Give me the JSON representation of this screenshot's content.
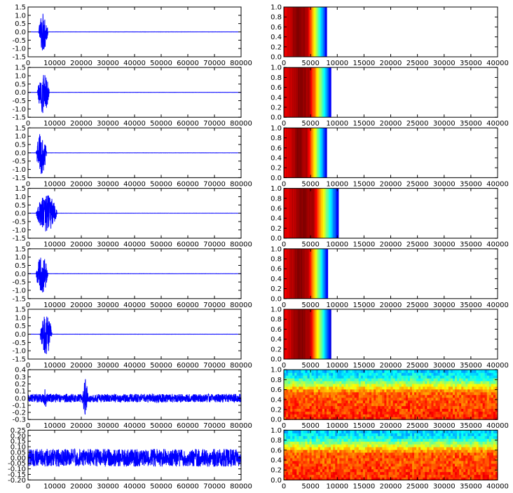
{
  "chart_data": [
    {
      "type": "line",
      "kind": "waveform",
      "row": 0,
      "xlim": [
        0,
        80000
      ],
      "ylim": [
        -1.5,
        1.5
      ],
      "xticks": [
        "0",
        "10000",
        "20000",
        "30000",
        "40000",
        "50000",
        "60000",
        "70000",
        "80000"
      ],
      "yticks": [
        "1.5",
        "1.0",
        "0.5",
        "0.0",
        "-0.5",
        "-1.0",
        "-1.5"
      ],
      "burst": {
        "start": 4000,
        "end": 7500,
        "amplitude": 1.2
      },
      "noise": 0.02,
      "line_color": "#0000ff"
    },
    {
      "type": "heatmap",
      "kind": "spectrogram",
      "row": 0,
      "xlim": [
        0,
        40000
      ],
      "ylim": [
        0,
        1
      ],
      "xticks": [
        "0",
        "5000",
        "10000",
        "15000",
        "20000",
        "25000",
        "30000",
        "35000",
        "40000"
      ],
      "yticks": [
        "1.0",
        "0.8",
        "0.6",
        "0.4",
        "0.2",
        "0.0"
      ],
      "colormap": "jet",
      "extent": 8000,
      "pattern": "gradient"
    },
    {
      "type": "line",
      "kind": "waveform",
      "row": 1,
      "xlim": [
        0,
        80000
      ],
      "ylim": [
        -1.5,
        1.5
      ],
      "xticks": [
        "0",
        "10000",
        "20000",
        "30000",
        "40000",
        "50000",
        "60000",
        "70000",
        "80000"
      ],
      "yticks": [
        "1.5",
        "1.0",
        "0.5",
        "0.0",
        "-0.5",
        "-1.0",
        "-1.5"
      ],
      "burst": {
        "start": 3500,
        "end": 8000,
        "amplitude": 1.3
      },
      "noise": 0.02,
      "line_color": "#0000ff"
    },
    {
      "type": "heatmap",
      "kind": "spectrogram",
      "row": 1,
      "xlim": [
        0,
        40000
      ],
      "ylim": [
        0,
        1
      ],
      "xticks": [
        "0",
        "5000",
        "10000",
        "15000",
        "20000",
        "25000",
        "30000",
        "35000",
        "40000"
      ],
      "yticks": [
        "1.0",
        "0.8",
        "0.6",
        "0.4",
        "0.2",
        "0.0"
      ],
      "colormap": "jet",
      "extent": 8800,
      "pattern": "gradient"
    },
    {
      "type": "line",
      "kind": "waveform",
      "row": 2,
      "xlim": [
        0,
        80000
      ],
      "ylim": [
        -1.5,
        1.5
      ],
      "xticks": [
        "0",
        "10000",
        "20000",
        "30000",
        "40000",
        "50000",
        "60000",
        "70000",
        "80000"
      ],
      "yticks": [
        "1.5",
        "1.0",
        "0.5",
        "0.0",
        "-0.5",
        "-1.0",
        "-1.5"
      ],
      "burst": {
        "start": 3000,
        "end": 7000,
        "amplitude": 1.3
      },
      "noise": 0.02,
      "line_color": "#0000ff"
    },
    {
      "type": "heatmap",
      "kind": "spectrogram",
      "row": 2,
      "xlim": [
        0,
        40000
      ],
      "ylim": [
        0,
        1
      ],
      "xticks": [
        "0",
        "5000",
        "10000",
        "15000",
        "20000",
        "25000",
        "30000",
        "35000",
        "40000"
      ],
      "yticks": [
        "1.0",
        "0.8",
        "0.6",
        "0.4",
        "0.2",
        "0.0"
      ],
      "colormap": "jet",
      "extent": 8000,
      "pattern": "gradient"
    },
    {
      "type": "line",
      "kind": "waveform",
      "row": 3,
      "xlim": [
        0,
        80000
      ],
      "ylim": [
        -1.5,
        1.5
      ],
      "xticks": [
        "0",
        "10000",
        "20000",
        "30000",
        "40000",
        "50000",
        "60000",
        "70000",
        "80000"
      ],
      "yticks": [
        "1.5",
        "1.0",
        "0.5",
        "0.0",
        "-0.5",
        "-1.0",
        "-1.5"
      ],
      "burst": {
        "start": 3000,
        "end": 11000,
        "amplitude": 1.1
      },
      "noise": 0.02,
      "line_color": "#0000ff"
    },
    {
      "type": "heatmap",
      "kind": "spectrogram",
      "row": 3,
      "xlim": [
        0,
        40000
      ],
      "ylim": [
        0,
        1
      ],
      "xticks": [
        "0",
        "5000",
        "10000",
        "15000",
        "20000",
        "25000",
        "30000",
        "35000",
        "40000"
      ],
      "yticks": [
        "1.0",
        "0.8",
        "0.6",
        "0.4",
        "0.2",
        "0.0"
      ],
      "colormap": "jet",
      "extent": 10200,
      "pattern": "gradient"
    },
    {
      "type": "line",
      "kind": "waveform",
      "row": 4,
      "xlim": [
        0,
        80000
      ],
      "ylim": [
        -1.5,
        1.5
      ],
      "xticks": [
        "0",
        "10000",
        "20000",
        "30000",
        "40000",
        "50000",
        "60000",
        "70000",
        "80000"
      ],
      "yticks": [
        "1.5",
        "1.0",
        "0.5",
        "0.0",
        "-0.5",
        "-1.0",
        "-1.5"
      ],
      "burst": {
        "start": 3000,
        "end": 7500,
        "amplitude": 1.2
      },
      "noise": 0.02,
      "line_color": "#0000ff"
    },
    {
      "type": "heatmap",
      "kind": "spectrogram",
      "row": 4,
      "xlim": [
        0,
        40000
      ],
      "ylim": [
        0,
        1
      ],
      "xticks": [
        "0",
        "5000",
        "10000",
        "15000",
        "20000",
        "25000",
        "30000",
        "35000",
        "40000"
      ],
      "yticks": [
        "1.0",
        "0.8",
        "0.6",
        "0.4",
        "0.2",
        "0.0"
      ],
      "colormap": "jet",
      "extent": 8200,
      "pattern": "gradient"
    },
    {
      "type": "line",
      "kind": "waveform",
      "row": 5,
      "xlim": [
        0,
        80000
      ],
      "ylim": [
        -1.5,
        1.5
      ],
      "xticks": [
        "0",
        "10000",
        "20000",
        "30000",
        "40000",
        "50000",
        "60000",
        "70000",
        "80000"
      ],
      "yticks": [
        "1.5",
        "1.0",
        "0.5",
        "0.0",
        "-0.5",
        "-1.0",
        "-1.5"
      ],
      "burst": {
        "start": 4500,
        "end": 9000,
        "amplitude": 1.2
      },
      "noise": 0.02,
      "line_color": "#0000ff"
    },
    {
      "type": "heatmap",
      "kind": "spectrogram",
      "row": 5,
      "xlim": [
        0,
        40000
      ],
      "ylim": [
        0,
        1
      ],
      "xticks": [
        "0",
        "5000",
        "10000",
        "15000",
        "20000",
        "25000",
        "30000",
        "35000",
        "40000"
      ],
      "yticks": [
        "1.0",
        "0.8",
        "0.6",
        "0.4",
        "0.2",
        "0.0"
      ],
      "colormap": "jet",
      "extent": 8800,
      "pattern": "gradient"
    },
    {
      "type": "line",
      "kind": "waveform",
      "row": 6,
      "xlim": [
        0,
        80000
      ],
      "ylim": [
        -0.3,
        0.4
      ],
      "xticks": [
        "0",
        "10000",
        "20000",
        "30000",
        "40000",
        "50000",
        "60000",
        "70000",
        "80000"
      ],
      "yticks": [
        "0.4",
        "0.3",
        "0.2",
        "0.1",
        "0.0",
        "-0.1",
        "-0.2",
        "-0.3"
      ],
      "noise": 0.06,
      "spikes": [
        {
          "x": 6500,
          "amplitude": 0.15
        },
        {
          "x": 21500,
          "amplitude": 0.3
        }
      ],
      "line_color": "#0000ff"
    },
    {
      "type": "heatmap",
      "kind": "spectrogram",
      "row": 6,
      "xlim": [
        0,
        40000
      ],
      "ylim": [
        0,
        1
      ],
      "xticks": [
        "0",
        "5000",
        "10000",
        "15000",
        "20000",
        "25000",
        "30000",
        "35000",
        "40000"
      ],
      "yticks": [
        "1.0",
        "0.8",
        "0.6",
        "0.4",
        "0.2",
        "0.0"
      ],
      "colormap": "jet",
      "pattern": "noise"
    },
    {
      "type": "line",
      "kind": "waveform",
      "row": 7,
      "xlim": [
        0,
        80000
      ],
      "ylim": [
        -0.2,
        0.25
      ],
      "xticks": [
        "0",
        "10000",
        "20000",
        "30000",
        "40000",
        "50000",
        "60000",
        "70000",
        "80000"
      ],
      "yticks": [
        "0.25",
        "0.20",
        "0.15",
        "0.10",
        "0.05",
        "0.00",
        "-0.05",
        "-0.10",
        "-0.15",
        "-0.20"
      ],
      "noise": 0.08,
      "line_color": "#0000ff"
    },
    {
      "type": "heatmap",
      "kind": "spectrogram",
      "row": 7,
      "xlim": [
        0,
        40000
      ],
      "ylim": [
        0,
        1
      ],
      "xticks": [
        "0",
        "5000",
        "10000",
        "15000",
        "20000",
        "25000",
        "30000",
        "35000",
        "40000"
      ],
      "yticks": [
        "1.0",
        "0.8",
        "0.6",
        "0.4",
        "0.2",
        "0.0"
      ],
      "colormap": "jet",
      "pattern": "noise"
    }
  ]
}
